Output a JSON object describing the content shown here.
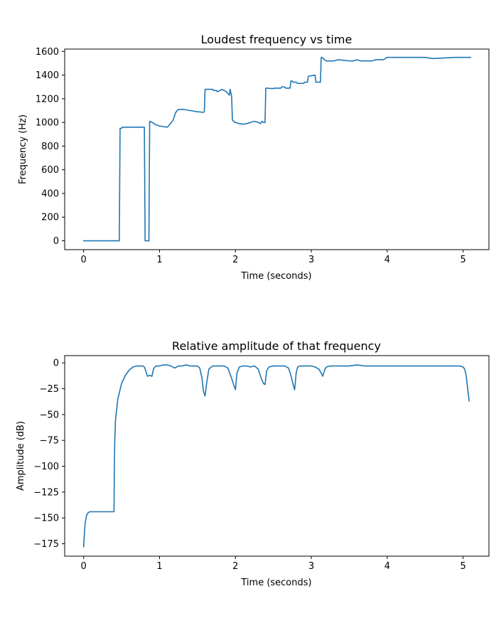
{
  "chart_data": [
    {
      "type": "line",
      "title": "Loudest frequency vs time",
      "xlabel": "Time (seconds)",
      "ylabel": "Frequency (Hz)",
      "xlim": [
        -0.25,
        5.34
      ],
      "ylim": [
        -75,
        1620
      ],
      "xticks": [
        0,
        1,
        2,
        3,
        4,
        5
      ],
      "xtick_labels": [
        "0",
        "1",
        "2",
        "3",
        "4",
        "5"
      ],
      "yticks": [
        0,
        200,
        400,
        600,
        800,
        1000,
        1200,
        1400,
        1600
      ],
      "ytick_labels": [
        "0",
        "200",
        "400",
        "600",
        "800",
        "1000",
        "1200",
        "1400",
        "1600"
      ],
      "grid": false,
      "series": [
        {
          "name": "frequency",
          "color": "#1f77b4",
          "x": [
            0,
            0.47,
            0.48,
            0.5,
            0.51,
            0.55,
            0.56,
            0.8,
            0.81,
            0.86,
            0.87,
            0.92,
            0.95,
            1.0,
            1.1,
            1.12,
            1.18,
            1.2,
            1.21,
            1.23,
            1.25,
            1.28,
            1.32,
            1.4,
            1.41,
            1.5,
            1.51,
            1.58,
            1.59,
            1.6,
            1.7,
            1.71,
            1.75,
            1.76,
            1.8,
            1.82,
            1.88,
            1.92,
            1.93,
            1.95,
            1.96,
            1.98,
            1.99,
            2.0,
            2.05,
            2.1,
            2.15,
            2.2,
            2.25,
            2.3,
            2.33,
            2.35,
            2.37,
            2.39,
            2.4,
            2.41,
            2.5,
            2.51,
            2.6,
            2.61,
            2.65,
            2.66,
            2.72,
            2.73,
            2.75,
            2.76,
            2.8,
            2.82,
            2.84,
            2.9,
            2.91,
            2.95,
            2.96,
            3.05,
            3.06,
            3.12,
            3.13,
            3.14,
            3.16,
            3.17,
            3.2,
            3.25,
            3.3,
            3.35,
            3.5,
            3.55,
            3.6,
            3.65,
            3.8,
            3.85,
            3.9,
            3.95,
            4.0,
            4.2,
            4.21,
            4.5,
            4.6,
            4.9,
            4.97,
            5.0,
            5.02,
            5.1
          ],
          "y": [
            0,
            0,
            950,
            950,
            960,
            960,
            960,
            960,
            0,
            0,
            1010,
            995,
            980,
            970,
            960,
            970,
            1020,
            1060,
            1080,
            1100,
            1110,
            1110,
            1110,
            1100,
            1100,
            1090,
            1090,
            1085,
            1090,
            1280,
            1280,
            1270,
            1270,
            1260,
            1270,
            1280,
            1260,
            1230,
            1280,
            1220,
            1020,
            1010,
            1000,
            1000,
            990,
            985,
            990,
            1000,
            1010,
            1000,
            990,
            1010,
            1000,
            1000,
            1290,
            1290,
            1285,
            1290,
            1290,
            1300,
            1300,
            1290,
            1290,
            1350,
            1350,
            1340,
            1340,
            1330,
            1330,
            1330,
            1340,
            1340,
            1390,
            1400,
            1340,
            1340,
            1550,
            1550,
            1540,
            1530,
            1520,
            1520,
            1520,
            1530,
            1520,
            1520,
            1530,
            1520,
            1520,
            1530,
            1530,
            1530,
            1550,
            1550,
            1550,
            1550,
            1540,
            1550,
            1550,
            1550,
            1550,
            1550
          ]
        }
      ]
    },
    {
      "type": "line",
      "title": "Relative amplitude of that frequency",
      "xlabel": "Time (seconds)",
      "ylabel": "Amplitude (dB)",
      "xlim": [
        -0.25,
        5.34
      ],
      "ylim": [
        -187,
        7
      ],
      "xticks": [
        0,
        1,
        2,
        3,
        4,
        5
      ],
      "xtick_labels": [
        "0",
        "1",
        "2",
        "3",
        "4",
        "5"
      ],
      "yticks": [
        0,
        -25,
        -50,
        -75,
        -100,
        -125,
        -150,
        -175
      ],
      "ytick_labels": [
        "0",
        "−25",
        "−50",
        "−75",
        "−100",
        "−125",
        "−150",
        "−175"
      ],
      "grid": false,
      "series": [
        {
          "name": "amplitude",
          "color": "#1f77b4",
          "x": [
            0,
            0.01,
            0.02,
            0.04,
            0.06,
            0.08,
            0.1,
            0.4,
            0.405,
            0.41,
            0.42,
            0.45,
            0.5,
            0.55,
            0.6,
            0.65,
            0.7,
            0.75,
            0.78,
            0.8,
            0.82,
            0.84,
            0.87,
            0.9,
            0.92,
            0.95,
            1.0,
            1.05,
            1.1,
            1.15,
            1.2,
            1.25,
            1.3,
            1.35,
            1.4,
            1.45,
            1.5,
            1.53,
            1.56,
            1.58,
            1.6,
            1.62,
            1.65,
            1.7,
            1.75,
            1.8,
            1.85,
            1.9,
            1.95,
            1.98,
            2.0,
            2.02,
            2.05,
            2.1,
            2.15,
            2.2,
            2.25,
            2.3,
            2.34,
            2.37,
            2.39,
            2.41,
            2.44,
            2.5,
            2.55,
            2.6,
            2.65,
            2.7,
            2.73,
            2.76,
            2.78,
            2.8,
            2.82,
            2.85,
            2.9,
            2.95,
            3.0,
            3.05,
            3.1,
            3.13,
            3.15,
            3.18,
            3.2,
            3.25,
            3.3,
            3.4,
            3.5,
            3.6,
            3.7,
            3.8,
            3.9,
            4.0,
            4.1,
            4.2,
            4.3,
            4.4,
            4.5,
            4.6,
            4.7,
            4.8,
            4.9,
            4.95,
            5.0,
            5.02,
            5.04,
            5.06,
            5.08
          ],
          "y": [
            -178,
            -165,
            -155,
            -147,
            -145,
            -144,
            -144,
            -144,
            -100,
            -75,
            -55,
            -35,
            -20,
            -12,
            -7,
            -4,
            -3,
            -3,
            -3,
            -4,
            -8,
            -13,
            -12,
            -13,
            -6,
            -3,
            -3,
            -2,
            -2,
            -3,
            -5,
            -3,
            -3,
            -2,
            -3,
            -3,
            -3,
            -5,
            -15,
            -28,
            -32,
            -20,
            -6,
            -3,
            -3,
            -3,
            -3,
            -5,
            -15,
            -22,
            -26,
            -10,
            -4,
            -3,
            -3,
            -4,
            -3,
            -6,
            -15,
            -20,
            -21,
            -8,
            -4,
            -3,
            -3,
            -3,
            -3,
            -5,
            -12,
            -21,
            -26,
            -10,
            -4,
            -3,
            -3,
            -3,
            -3,
            -4,
            -6,
            -10,
            -13,
            -6,
            -4,
            -3,
            -3,
            -3,
            -3,
            -2,
            -3,
            -3,
            -3,
            -3,
            -3,
            -3,
            -3,
            -3,
            -3,
            -3,
            -3,
            -3,
            -3,
            -3,
            -4,
            -6,
            -12,
            -25,
            -37
          ]
        }
      ]
    }
  ]
}
